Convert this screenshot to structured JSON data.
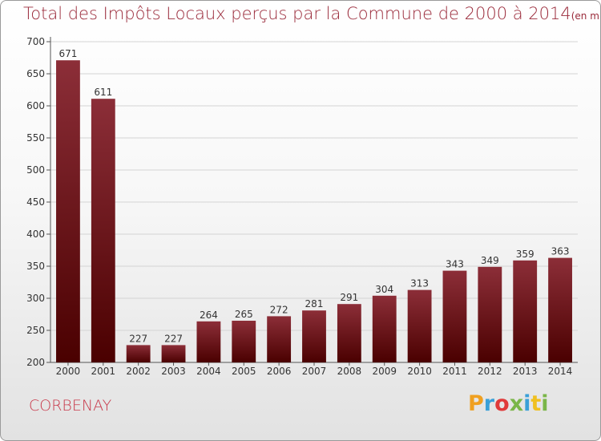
{
  "header": {
    "title": "Total des Impôts Locaux perçus par la Commune de 2000 à 2014",
    "subtitle": "(en milliers d'€)"
  },
  "footer": {
    "commune": "CORBENAY",
    "logo": "Proxiti",
    "logo_colors": [
      "#f0a020",
      "#3aa0d8",
      "#e03a3a",
      "#7ab648",
      "#3aa0d8",
      "#f0c020",
      "#7ab648"
    ]
  },
  "colors": {
    "bar_top": "#8c2e38",
    "bar_bottom": "#4a0000",
    "title": "#9a2a3a"
  },
  "chart_data": {
    "type": "bar",
    "title": "Total des Impôts Locaux perçus par la Commune de 2000 à 2014",
    "categories": [
      "2000",
      "2001",
      "2002",
      "2003",
      "2004",
      "2005",
      "2006",
      "2007",
      "2008",
      "2009",
      "2010",
      "2011",
      "2012",
      "2013",
      "2014"
    ],
    "values": [
      671,
      611,
      227,
      227,
      264,
      265,
      272,
      281,
      291,
      304,
      313,
      343,
      349,
      359,
      363
    ],
    "yticks": [
      200,
      250,
      300,
      350,
      400,
      450,
      500,
      550,
      600,
      650,
      700
    ],
    "ylim": [
      200,
      700
    ],
    "xlabel": "",
    "ylabel": "",
    "grid": true,
    "legend": "none"
  }
}
